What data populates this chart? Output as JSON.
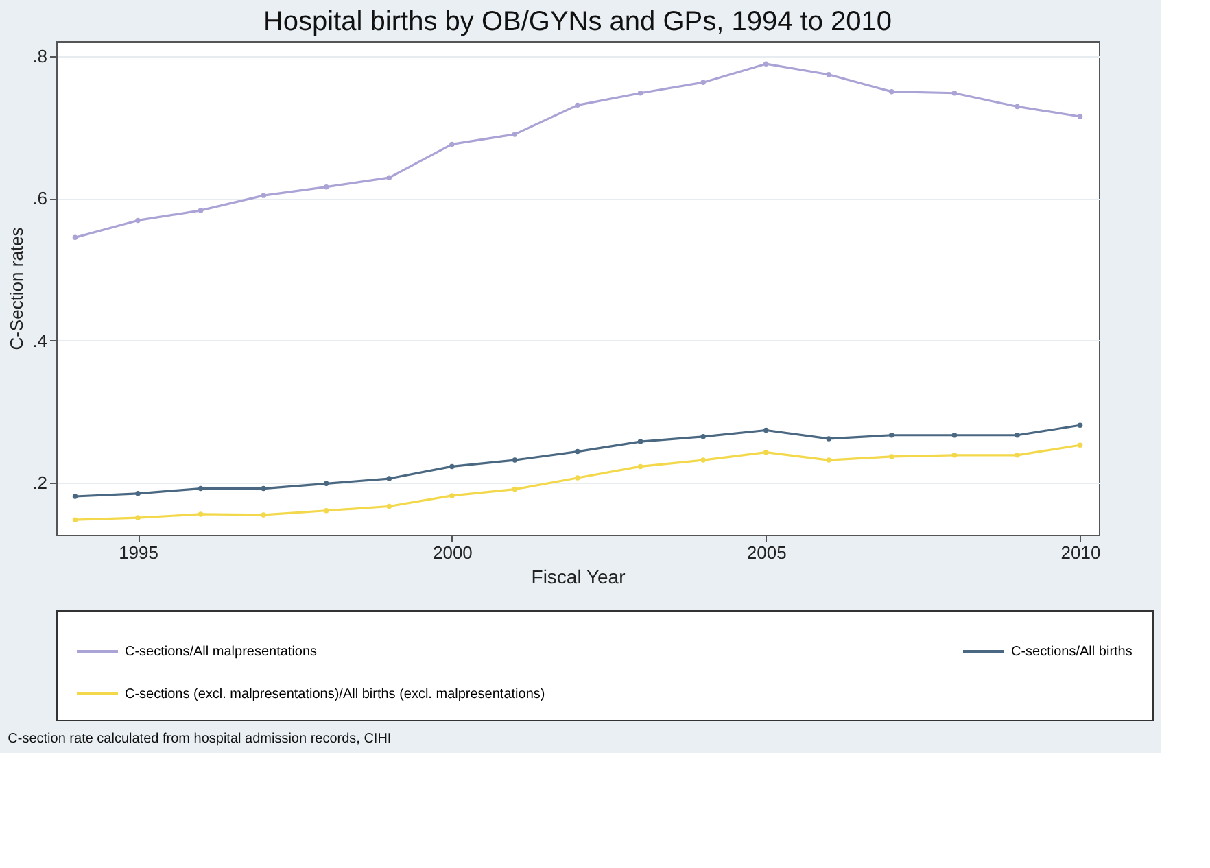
{
  "chart_data": {
    "type": "line",
    "title": "Hospital births by OB/GYNs and GPs, 1994 to 2010",
    "xlabel": "Fiscal Year",
    "ylabel": "C-Section rates",
    "x": [
      1994,
      1995,
      1996,
      1997,
      1998,
      1999,
      2000,
      2001,
      2002,
      2003,
      2004,
      2005,
      2006,
      2007,
      2008,
      2009,
      2010
    ],
    "series": [
      {
        "name": "C-sections/All malpresentations",
        "color": "#a9a3d6",
        "values": [
          0.545,
          0.569,
          0.583,
          0.604,
          0.616,
          0.629,
          0.676,
          0.69,
          0.731,
          0.748,
          0.763,
          0.789,
          0.774,
          0.75,
          0.748,
          0.729,
          0.715
        ]
      },
      {
        "name": "C-sections/All births",
        "color": "#4a6882",
        "values": [
          0.181,
          0.185,
          0.192,
          0.192,
          0.199,
          0.206,
          0.223,
          0.232,
          0.244,
          0.258,
          0.265,
          0.274,
          0.262,
          0.267,
          0.267,
          0.267,
          0.281
        ]
      },
      {
        "name": "C-sections (excl. malpresentations)/All births (excl. malpresentations)",
        "color": "#f2d84a",
        "values": [
          0.148,
          0.151,
          0.156,
          0.155,
          0.161,
          0.167,
          0.182,
          0.191,
          0.207,
          0.223,
          0.232,
          0.243,
          0.232,
          0.237,
          0.239,
          0.239,
          0.253
        ]
      }
    ],
    "xlim": [
      1993.7,
      2010.3
    ],
    "xticks": [
      1995,
      2000,
      2005,
      2010
    ],
    "ylim": [
      0.127,
      0.821
    ],
    "yticks": [
      {
        "value": 0.2,
        "label": ".2"
      },
      {
        "value": 0.4,
        "label": ".4"
      },
      {
        "value": 0.6,
        "label": ".6"
      },
      {
        "value": 0.8,
        "label": ".8"
      }
    ],
    "grid": "y",
    "legend": "bottom",
    "marker": "circle",
    "line_style": "solid",
    "annotations": [
      "C-section rate calculated from hospital admission records, CIHI"
    ]
  }
}
